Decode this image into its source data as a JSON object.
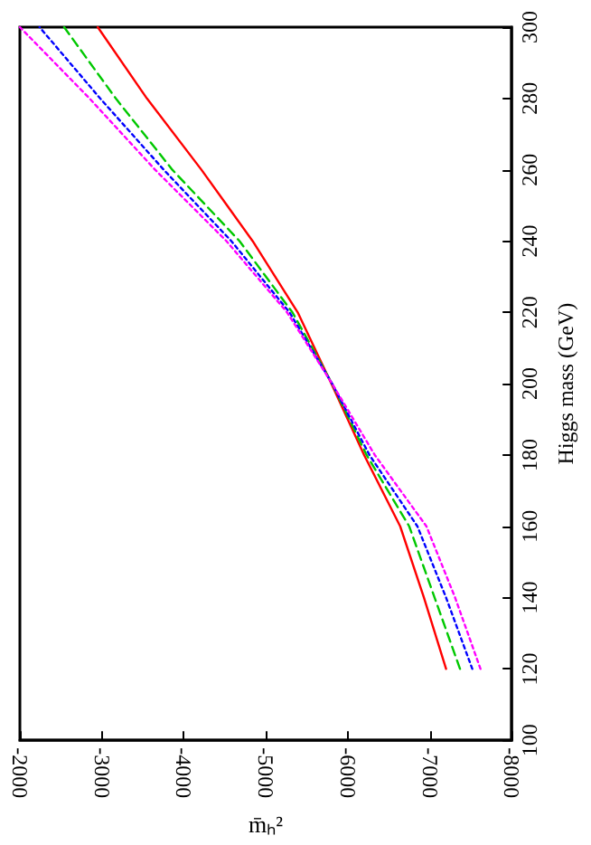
{
  "chart_data": {
    "type": "line",
    "xlabel": "m̄ₕ²",
    "ylabel": "Higgs mass (GeV)",
    "xlim": [
      -2000,
      -8000
    ],
    "xticks": [
      -2000,
      -3000,
      -4000,
      -5000,
      -6000,
      -7000,
      -8000
    ],
    "ylim": [
      100,
      300
    ],
    "yticks": [
      100,
      120,
      140,
      160,
      180,
      200,
      220,
      240,
      260,
      280,
      300
    ],
    "grid": false,
    "marker": "none",
    "series": [
      {
        "color": "#ff0000",
        "line_style": "solid",
        "x": [
          -7200,
          -6930,
          -6640,
          -6200,
          -5800,
          -5390,
          -4840,
          -4215,
          -3550,
          -2950
        ],
        "values": [
          120,
          140,
          160,
          180,
          200,
          220,
          240,
          260,
          280,
          300
        ]
      },
      {
        "color": "#00c800",
        "line_style": "dashed",
        "x": [
          -7370,
          -7060,
          -6750,
          -6230,
          -5810,
          -5325,
          -4680,
          -3860,
          -3170,
          -2540
        ],
        "values": [
          120,
          140,
          160,
          180,
          200,
          220,
          240,
          260,
          280,
          300
        ]
      },
      {
        "color": "#0000ff",
        "line_style": "dotted",
        "x": [
          -7520,
          -7200,
          -6850,
          -6265,
          -5810,
          -5290,
          -4580,
          -3755,
          -2980,
          -2240
        ],
        "values": [
          120,
          140,
          160,
          180,
          200,
          220,
          240,
          260,
          280,
          300
        ]
      },
      {
        "color": "#ff00ff",
        "line_style": "dotted",
        "x": [
          -7620,
          -7310,
          -6960,
          -6330,
          -5810,
          -5260,
          -4520,
          -3650,
          -2850,
          -2000
        ],
        "values": [
          120,
          140,
          160,
          180,
          200,
          220,
          240,
          260,
          280,
          300
        ]
      }
    ]
  }
}
